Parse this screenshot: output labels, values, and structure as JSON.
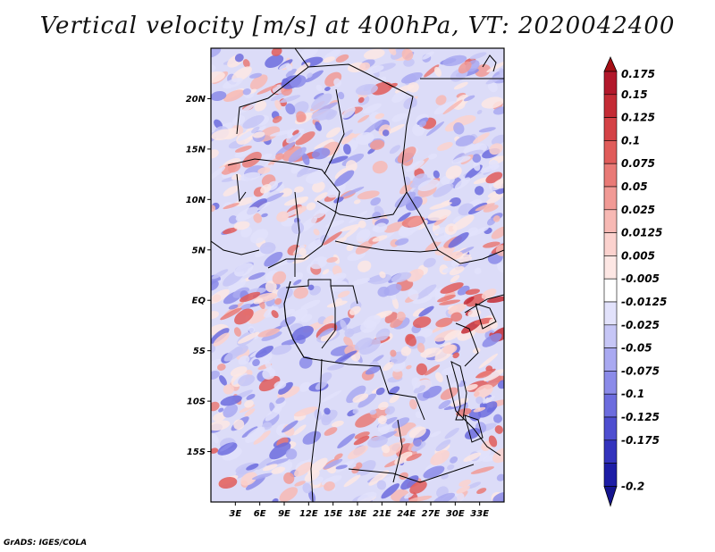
{
  "title": "Vertical velocity [m/s] at 400hPa, VT: 2020042400",
  "footer": "GrADS: IGES/COLA",
  "map": {
    "lon_range": [
      0,
      36
    ],
    "lat_range": [
      -20,
      25
    ],
    "lat_ticks": [
      {
        "value": 20,
        "label": "20N"
      },
      {
        "value": 15,
        "label": "15N"
      },
      {
        "value": 10,
        "label": "10N"
      },
      {
        "value": 5,
        "label": "5N"
      },
      {
        "value": 0,
        "label": "EQ"
      },
      {
        "value": -5,
        "label": "5S"
      },
      {
        "value": -10,
        "label": "10S"
      },
      {
        "value": -15,
        "label": "15S"
      }
    ],
    "lon_ticks": [
      {
        "value": 3,
        "label": "3E"
      },
      {
        "value": 6,
        "label": "6E"
      },
      {
        "value": 9,
        "label": "9E"
      },
      {
        "value": 12,
        "label": "12E"
      },
      {
        "value": 15,
        "label": "15E"
      },
      {
        "value": 18,
        "label": "18E"
      },
      {
        "value": 21,
        "label": "21E"
      },
      {
        "value": 24,
        "label": "24E"
      },
      {
        "value": 27,
        "label": "27E"
      },
      {
        "value": 30,
        "label": "30E"
      },
      {
        "value": 33,
        "label": "33E"
      }
    ]
  },
  "colorbar": {
    "levels": [
      {
        "label": "0.175",
        "color": "#b2182b"
      },
      {
        "label": "0.15",
        "color": "#c42b35"
      },
      {
        "label": "0.125",
        "color": "#d44246"
      },
      {
        "label": "0.1",
        "color": "#e05c5a"
      },
      {
        "label": "0.075",
        "color": "#e97a76"
      },
      {
        "label": "0.05",
        "color": "#f19a95"
      },
      {
        "label": "0.025",
        "color": "#f7b9b4"
      },
      {
        "label": "0.0125",
        "color": "#fbd2ce"
      },
      {
        "label": "0.005",
        "color": "#fde7e4"
      },
      {
        "label": "-0.005",
        "color": "#ffffff"
      },
      {
        "label": "-0.0125",
        "color": "#e2e2fb"
      },
      {
        "label": "-0.025",
        "color": "#c6c6f6"
      },
      {
        "label": "-0.05",
        "color": "#a9a9f1"
      },
      {
        "label": "-0.075",
        "color": "#8b8be9"
      },
      {
        "label": "-0.1",
        "color": "#6c6cde"
      },
      {
        "label": "-0.125",
        "color": "#4e4ed0"
      },
      {
        "label": "-0.175",
        "color": "#3333bd"
      },
      {
        "label": "-0.2",
        "color": "#1d1da6"
      }
    ],
    "top_arrow_color": "#a50f15",
    "bottom_arrow_color": "#14148f"
  }
}
